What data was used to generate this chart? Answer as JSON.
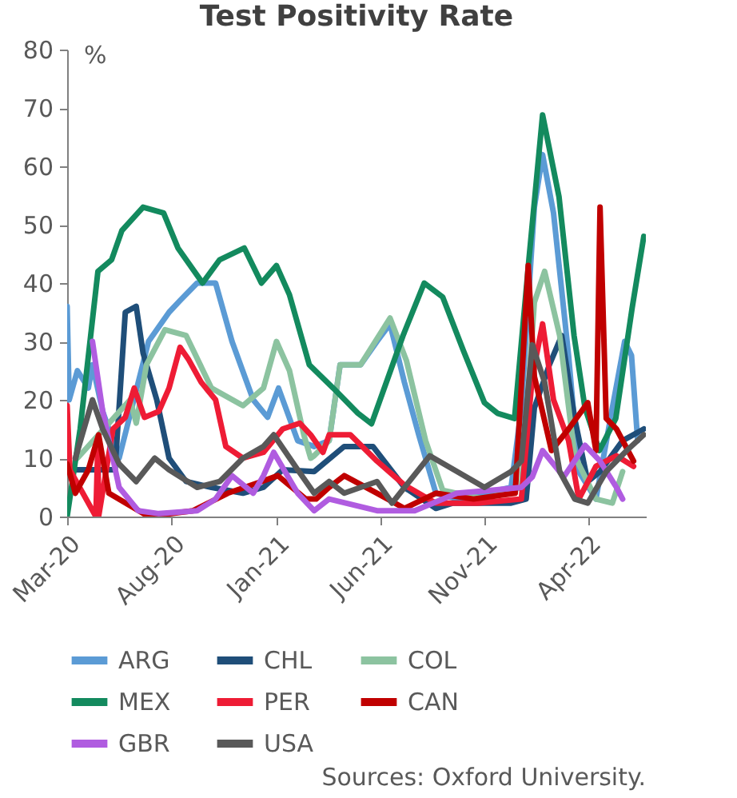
{
  "chart_data": {
    "type": "line",
    "title": "Test Positivity Rate",
    "ylabel": "%",
    "xlim": [
      "2020-03-01",
      "2022-06-25"
    ],
    "ylim": [
      0,
      80
    ],
    "yticks": [
      0,
      10,
      20,
      30,
      40,
      50,
      60,
      70,
      80
    ],
    "xticks": [
      {
        "value": "2020-03-01",
        "label": "Mar-20"
      },
      {
        "value": "2020-08-01",
        "label": "Aug-20"
      },
      {
        "value": "2021-01-01",
        "label": "Jan-21"
      },
      {
        "value": "2021-06-01",
        "label": "Jun-21"
      },
      {
        "value": "2021-11-01",
        "label": "Nov-21"
      },
      {
        "value": "2022-04-01",
        "label": "Apr-22"
      }
    ],
    "grid": false,
    "legend": "bottom",
    "line_style": "solid",
    "marker": "none",
    "annotations": [
      "Sources: Oxford University."
    ],
    "series": [
      {
        "name": "ARG",
        "color": "#5b9bd5",
        "x": [
          "2020-03-01",
          "2020-03-04",
          "2020-03-16",
          "2020-04-01",
          "2020-04-07",
          "2020-04-22",
          "2020-05-16",
          "2020-06-28",
          "2020-07-28",
          "2020-08-13",
          "2020-09-07",
          "2020-10-04",
          "2020-10-28",
          "2020-11-28",
          "2020-12-19",
          "2021-01-04",
          "2021-02-01",
          "2021-02-25",
          "2021-03-19",
          "2021-04-04",
          "2021-05-04",
          "2021-05-28",
          "2021-06-16",
          "2021-07-07",
          "2021-07-28",
          "2021-08-22",
          "2021-09-22",
          "2021-11-01",
          "2021-12-10",
          "2021-12-25",
          "2022-01-13",
          "2022-01-25",
          "2022-02-10",
          "2022-03-04",
          "2022-03-19",
          "2022-04-13",
          "2022-05-07",
          "2022-05-25",
          "2022-06-04",
          "2022-06-13"
        ],
        "values": [
          36,
          20,
          25,
          22,
          26,
          18,
          10,
          30,
          35,
          37,
          40,
          40,
          30,
          20,
          17,
          22,
          13,
          12,
          13,
          26,
          26,
          30,
          33,
          23,
          14,
          4,
          3,
          4,
          5,
          18.6,
          53,
          62,
          52,
          27.6,
          7.7,
          3,
          18.6,
          30,
          27.6,
          13
        ]
      },
      {
        "name": "CHL",
        "color": "#1f4e79",
        "x": [
          "2020-03-01",
          "2020-04-15",
          "2020-05-10",
          "2020-05-25",
          "2020-06-10",
          "2020-06-20",
          "2020-07-10",
          "2020-07-28",
          "2020-08-22",
          "2020-09-28",
          "2020-11-13",
          "2020-12-13",
          "2021-01-10",
          "2021-02-25",
          "2021-04-10",
          "2021-05-22",
          "2021-07-07",
          "2021-08-22",
          "2021-09-16",
          "2021-12-10",
          "2022-01-01",
          "2022-01-13",
          "2022-02-04",
          "2022-02-22",
          "2022-03-13",
          "2022-04-01",
          "2022-04-19",
          "2022-05-22",
          "2022-06-22"
        ],
        "values": [
          8,
          8,
          8,
          35,
          36,
          28,
          20,
          10,
          6,
          5,
          4,
          5,
          8,
          7.7,
          12,
          12,
          5,
          1.4,
          2.3,
          2.3,
          3,
          18.6,
          26,
          31,
          16.8,
          6,
          7.7,
          13,
          15
        ]
      },
      {
        "name": "COL",
        "color": "#8cc3a0",
        "x": [
          "2020-03-16",
          "2020-06-01",
          "2020-06-10",
          "2020-06-25",
          "2020-07-22",
          "2020-08-22",
          "2020-09-28",
          "2020-11-13",
          "2020-12-13",
          "2021-01-01",
          "2021-01-20",
          "2021-02-10",
          "2021-02-20",
          "2021-02-25",
          "2021-03-19",
          "2021-04-04",
          "2021-05-04",
          "2021-06-16",
          "2021-07-10",
          "2021-08-07",
          "2021-09-01",
          "2021-11-01",
          "2021-12-25",
          "2022-01-13",
          "2022-01-28",
          "2022-02-19",
          "2022-03-13",
          "2022-04-13",
          "2022-05-07",
          "2022-05-22"
        ],
        "values": [
          10,
          20,
          16,
          26,
          32,
          31,
          22,
          19,
          22,
          30,
          25,
          14,
          10,
          10.4,
          13,
          26,
          26,
          34,
          26.7,
          13,
          4.5,
          3,
          5,
          36.7,
          42,
          31,
          10.4,
          3,
          2.3,
          7.7
        ]
      },
      {
        "name": "MEX",
        "color": "#138a5e",
        "x": [
          "2020-03-01",
          "2020-03-20",
          "2020-04-15",
          "2020-05-05",
          "2020-05-20",
          "2020-06-20",
          "2020-07-20",
          "2020-08-10",
          "2020-09-15",
          "2020-10-10",
          "2020-11-15",
          "2020-12-10",
          "2021-01-01",
          "2021-01-20",
          "2021-02-18",
          "2021-03-25",
          "2021-04-30",
          "2021-05-20",
          "2021-07-05",
          "2021-08-05",
          "2021-09-01",
          "2021-10-01",
          "2021-11-01",
          "2021-11-20",
          "2021-12-15",
          "2022-01-05",
          "2022-01-25",
          "2022-02-18",
          "2022-03-12",
          "2022-03-28",
          "2022-04-18",
          "2022-05-12",
          "2022-06-05",
          "2022-06-22"
        ],
        "values": [
          0,
          15,
          42,
          44,
          49,
          53,
          52,
          46,
          40,
          44,
          46,
          40,
          43,
          38,
          26,
          22,
          17.7,
          15.9,
          31,
          40,
          37.6,
          28.5,
          19.5,
          17.7,
          16.8,
          44,
          68.8,
          54.8,
          31,
          18.6,
          11.3,
          16.8,
          35.8,
          48
        ]
      },
      {
        "name": "PER",
        "color": "#ee1c35",
        "x": [
          "2020-03-01",
          "2020-03-05",
          "2020-04-12",
          "2020-04-15",
          "2020-04-16",
          "2020-05-07",
          "2020-05-25",
          "2020-06-07",
          "2020-06-22",
          "2020-07-13",
          "2020-07-28",
          "2020-08-13",
          "2020-08-25",
          "2020-09-13",
          "2020-10-04",
          "2020-10-19",
          "2020-11-13",
          "2020-12-13",
          "2021-01-10",
          "2021-02-04",
          "2021-02-20",
          "2021-03-10",
          "2021-03-19",
          "2021-04-19",
          "2021-05-28",
          "2021-07-07",
          "2021-08-22",
          "2021-10-22",
          "2021-12-25",
          "2022-01-10",
          "2022-01-25",
          "2022-02-10",
          "2022-03-04",
          "2022-03-19",
          "2022-04-13",
          "2022-05-13",
          "2022-06-07"
        ],
        "values": [
          19,
          8,
          0,
          13,
          0,
          15,
          17,
          22,
          17,
          18,
          22,
          29,
          27,
          23,
          20,
          12,
          10,
          11,
          15,
          16,
          14,
          11,
          14,
          14,
          9.5,
          5.4,
          2.3,
          2.3,
          3,
          24,
          33,
          20,
          13,
          3,
          8.6,
          10.4,
          8.6
        ]
      },
      {
        "name": "CAN",
        "color": "#c00000",
        "x": [
          "2020-03-01",
          "2020-03-13",
          "2020-04-01",
          "2020-04-16",
          "2020-05-01",
          "2020-06-28",
          "2020-09-01",
          "2020-10-22",
          "2020-12-10",
          "2021-01-03",
          "2021-02-13",
          "2021-02-28",
          "2021-03-19",
          "2021-04-10",
          "2021-05-28",
          "2021-07-07",
          "2021-08-22",
          "2021-10-16",
          "2021-12-16",
          "2022-01-04",
          "2022-01-13",
          "2022-02-07",
          "2022-03-04",
          "2022-04-01",
          "2022-04-13",
          "2022-04-19",
          "2022-04-28",
          "2022-05-13",
          "2022-06-07"
        ],
        "values": [
          9,
          4,
          8,
          14,
          4,
          0,
          1,
          4,
          6,
          7,
          3,
          3,
          5,
          7,
          4,
          1.4,
          4,
          3,
          4,
          43,
          24,
          11.3,
          15,
          19.5,
          11.3,
          53,
          16.8,
          15,
          9.5
        ]
      },
      {
        "name": "GBR",
        "color": "#b05ce0",
        "x": [
          "2020-04-07",
          "2020-04-22",
          "2020-05-16",
          "2020-06-13",
          "2020-07-13",
          "2020-09-07",
          "2020-10-04",
          "2020-10-28",
          "2020-11-28",
          "2020-12-13",
          "2020-12-28",
          "2021-02-01",
          "2021-02-25",
          "2021-03-19",
          "2021-05-28",
          "2021-07-22",
          "2021-09-22",
          "2021-11-10",
          "2021-12-25",
          "2022-01-10",
          "2022-01-25",
          "2022-02-25",
          "2022-03-28",
          "2022-04-19",
          "2022-05-13",
          "2022-05-22"
        ],
        "values": [
          30,
          18,
          5,
          1,
          0.5,
          1,
          3,
          7,
          4,
          7,
          11,
          4,
          1,
          3,
          1,
          1,
          4,
          4.5,
          5,
          6.8,
          11.3,
          6.8,
          12.2,
          9.5,
          5,
          3
        ]
      },
      {
        "name": "USA",
        "color": "#595959",
        "x": [
          "2020-03-13",
          "2020-04-07",
          "2020-04-22",
          "2020-05-16",
          "2020-06-10",
          "2020-07-07",
          "2020-07-28",
          "2020-09-07",
          "2020-10-10",
          "2020-11-13",
          "2020-12-13",
          "2020-12-28",
          "2021-02-01",
          "2021-02-25",
          "2021-03-19",
          "2021-04-10",
          "2021-05-28",
          "2021-06-19",
          "2021-08-13",
          "2021-09-22",
          "2021-11-01",
          "2021-12-10",
          "2021-12-25",
          "2022-01-10",
          "2022-01-28",
          "2022-02-19",
          "2022-03-13",
          "2022-04-01",
          "2022-04-28",
          "2022-05-28",
          "2022-06-22"
        ],
        "values": [
          10,
          20,
          15,
          9,
          6,
          10,
          8,
          5,
          6,
          10,
          12,
          14,
          8,
          4,
          6,
          4,
          6,
          2.3,
          10.4,
          7.7,
          5,
          7.7,
          9.5,
          29.4,
          23,
          7.7,
          3,
          2.3,
          7.7,
          11.3,
          14
        ]
      }
    ]
  }
}
